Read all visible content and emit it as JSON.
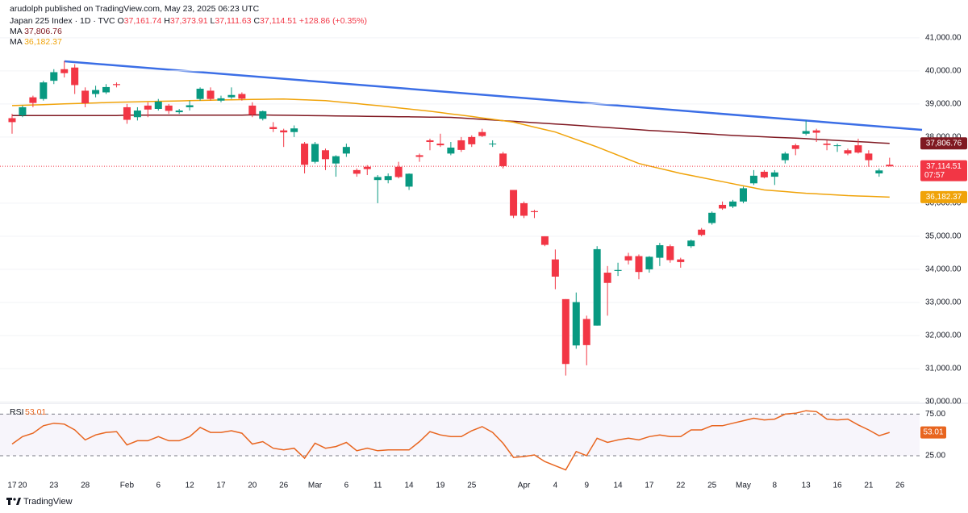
{
  "chart_data": {
    "type": "candlestick",
    "published": "arudolph published on TradingView.com, May 23, 2025 06:23 UTC",
    "title": "Japan 225 Index · 1D · TVC",
    "header": [
      {
        "prefix": "O",
        "value": 37161.74,
        "label": "37,161.74"
      },
      {
        "prefix": "H",
        "value": 37373.91,
        "label": "37,373.91"
      },
      {
        "prefix": "L",
        "value": 37111.63,
        "label": "37,111.63"
      },
      {
        "prefix": "C",
        "value": 37114.51,
        "label": "37,114.51"
      }
    ],
    "change": {
      "value": 128.86,
      "label": "+128.86"
    },
    "change_pct": {
      "value": 0.35,
      "label": "(+0.35%)"
    },
    "up_color": "#089981",
    "down_color": "#f23645",
    "categories": [
      "17",
      "20",
      null,
      null,
      "23",
      null,
      null,
      "28",
      null,
      null,
      null,
      "Feb",
      null,
      null,
      "6",
      null,
      null,
      "12",
      null,
      null,
      "17",
      null,
      null,
      "20",
      null,
      null,
      "26",
      null,
      null,
      "Mar",
      null,
      null,
      "6",
      null,
      null,
      "11",
      null,
      null,
      "14",
      null,
      null,
      "19",
      null,
      null,
      "25",
      null,
      null,
      null,
      null,
      "Apr",
      null,
      null,
      "4",
      null,
      null,
      "9",
      null,
      null,
      "14",
      null,
      null,
      "17",
      null,
      null,
      "22",
      null,
      null,
      "25",
      null,
      null,
      "May",
      null,
      null,
      "8",
      null,
      null,
      "13",
      null,
      null,
      "16",
      null,
      null,
      "21",
      null,
      null,
      "26"
    ],
    "open": [
      38570,
      38650,
      39200,
      39150,
      39700,
      40050,
      40100,
      39400,
      39300,
      39350,
      39600,
      38900,
      38600,
      38950,
      38850,
      38950,
      38750,
      38900,
      39150,
      39400,
      39100,
      39200,
      39300,
      38950,
      38550,
      38300,
      38200,
      38150,
      37800,
      37250,
      37600,
      37200,
      37500,
      37000,
      37100,
      36700,
      36700,
      37100,
      36500,
      37450,
      37900,
      37800,
      37500,
      37900,
      38000,
      38150,
      37780,
      37500,
      36400,
      36000,
      35760,
      35000,
      34300,
      33100,
      31700,
      32500,
      32300,
      33900,
      33950,
      34400,
      34400,
      34000,
      34350,
      34700,
      34300,
      34700,
      35200,
      35400,
      35950,
      35900,
      36050,
      36600,
      36950,
      36800,
      37300,
      37750,
      38100,
      38200,
      37800,
      37740,
      37600,
      37750,
      37500,
      36900,
      37161.74,
      null
    ],
    "high": [
      38700,
      38950,
      39250,
      39700,
      40050,
      40300,
      40200,
      39500,
      39550,
      39600,
      39650,
      39000,
      38900,
      39050,
      39150,
      39000,
      38850,
      39100,
      39500,
      39500,
      39250,
      39500,
      39350,
      39050,
      38800,
      38450,
      38250,
      38350,
      37850,
      37850,
      37650,
      37450,
      37800,
      37050,
      37150,
      36850,
      36900,
      37250,
      36900,
      37500,
      37950,
      38100,
      37850,
      38000,
      38050,
      38250,
      37900,
      37550,
      36400,
      36050,
      35800,
      35000,
      34600,
      33100,
      33300,
      32600,
      34700,
      34100,
      34200,
      34500,
      34450,
      34400,
      34800,
      34750,
      34350,
      34900,
      35250,
      35750,
      36050,
      36100,
      36500,
      37000,
      37000,
      37000,
      37550,
      37800,
      38500,
      38250,
      37900,
      37800,
      37650,
      37950,
      37600,
      37050,
      37373.91,
      null
    ],
    "low": [
      38100,
      38600,
      38900,
      39100,
      39600,
      39800,
      39300,
      38900,
      39200,
      39300,
      39500,
      38400,
      38500,
      38600,
      38800,
      38700,
      38700,
      38800,
      39100,
      39100,
      39050,
      39150,
      39100,
      38600,
      38500,
      38150,
      37700,
      38000,
      36900,
      37200,
      37000,
      36800,
      37400,
      36800,
      36850,
      36000,
      36600,
      36750,
      36400,
      37250,
      37600,
      37700,
      37450,
      37550,
      37700,
      38000,
      37700,
      37050,
      35550,
      35550,
      35550,
      34700,
      33400,
      30790,
      31600,
      31100,
      32300,
      32600,
      33800,
      34150,
      33700,
      33900,
      34100,
      34200,
      34050,
      34650,
      35000,
      35350,
      35800,
      35850,
      36000,
      36550,
      36750,
      36550,
      37200,
      37450,
      38050,
      37850,
      37600,
      37550,
      37450,
      37500,
      37100,
      36800,
      37111.63,
      null
    ],
    "close": [
      38450,
      38900,
      39030,
      39650,
      39960,
      39930,
      39570,
      39020,
      39420,
      39510,
      39570,
      38520,
      38800,
      38830,
      39070,
      38790,
      38800,
      38960,
      39460,
      39150,
      39170,
      39270,
      39160,
      38680,
      38780,
      38240,
      38140,
      38260,
      37160,
      37790,
      37330,
      37420,
      37700,
      36890,
      37030,
      36790,
      36820,
      36790,
      36890,
      37400,
      37850,
      37750,
      37680,
      37610,
      37780,
      38030,
      37800,
      37120,
      35620,
      35620,
      35730,
      34740,
      33780,
      31140,
      33010,
      31710,
      34610,
      33590,
      33980,
      34270,
      33920,
      34380,
      34730,
      34280,
      34220,
      34870,
      35040,
      35710,
      35840,
      36050,
      36450,
      36830,
      36780,
      36930,
      37500,
      37640,
      38180,
      38130,
      37760,
      37750,
      37500,
      37530,
      37300,
      36990,
      37114.51,
      null
    ],
    "last_label": "37,114.51",
    "countdown": "07:57",
    "ma": [
      {
        "name": "MA",
        "color": "#801922",
        "last_label": "37,806.76",
        "values": [
          38650,
          38650,
          38650,
          38650,
          38650,
          38650,
          38650,
          38650,
          38650,
          38650,
          38650,
          38660,
          38660,
          38660,
          38660,
          38660,
          38660,
          38660,
          38660,
          38660,
          38660,
          38660,
          38660,
          38670,
          38666,
          38662,
          38658,
          38654,
          38650,
          38646,
          38642,
          38638,
          38634,
          38630,
          38626,
          38622,
          38618,
          38614,
          38610,
          38606,
          38602,
          38598,
          38594,
          38574,
          38554,
          38534,
          38514,
          38494,
          38474,
          38454,
          38434,
          38414,
          38394,
          38374,
          38352,
          38330,
          38308,
          38286,
          38264,
          38242,
          38220,
          38200,
          38181,
          38162,
          38143,
          38124,
          38105,
          38086,
          38067,
          38048,
          38034,
          38020,
          38006,
          37992,
          37978,
          37964,
          37950,
          37932,
          37914,
          37896,
          37878,
          37860,
          37842,
          37824,
          37806.76,
          null
        ]
      },
      {
        "name": "MA",
        "color": "#f0a30a",
        "last_label": "36,182.37",
        "values": [
          38950,
          38960,
          38970,
          38980,
          38990,
          39000,
          39010,
          39020,
          39030,
          39040,
          39050,
          39057,
          39064,
          39071,
          39078,
          39085,
          39092,
          39099,
          39106,
          39113,
          39120,
          39125,
          39130,
          39135,
          39140,
          39145,
          39150,
          39138,
          39125,
          39113,
          39100,
          39070,
          39040,
          39010,
          38980,
          38950,
          38916,
          38882,
          38848,
          38814,
          38780,
          38740,
          38700,
          38660,
          38620,
          38578,
          38535,
          38493,
          38450,
          38375,
          38300,
          38225,
          38150,
          38038,
          37925,
          37813,
          37700,
          37575,
          37450,
          37325,
          37200,
          37125,
          37050,
          36975,
          36900,
          36838,
          36775,
          36713,
          36650,
          36588,
          36525,
          36463,
          36400,
          36375,
          36350,
          36325,
          36300,
          36283,
          36265,
          36248,
          36230,
          36218,
          36206,
          36194,
          36182.37,
          null
        ]
      }
    ],
    "ylim": [
      30000,
      41800
    ],
    "yticks": [
      {
        "value": 30000,
        "label": "30,000.00"
      },
      {
        "value": 31000,
        "label": "31,000.00"
      },
      {
        "value": 32000,
        "label": "32,000.00"
      },
      {
        "value": 33000,
        "label": "33,000.00"
      },
      {
        "value": 34000,
        "label": "34,000.00"
      },
      {
        "value": 35000,
        "label": "35,000.00"
      },
      {
        "value": 36000,
        "label": "36,000.00"
      },
      {
        "value": 38000,
        "label": "38,000.00"
      },
      {
        "value": 39000,
        "label": "39,000.00"
      },
      {
        "value": 40000,
        "label": "40,000.00"
      },
      {
        "value": 41000,
        "label": "41,000.00"
      }
    ],
    "grid": true,
    "rsi": {
      "name": "RSI",
      "label": "53.01",
      "color": "#e8651f",
      "ylim": [
        -5,
        86
      ],
      "levels": [
        {
          "value": 75,
          "label": "75.00"
        },
        {
          "value": 25,
          "label": "25.00"
        }
      ],
      "values": [
        39,
        48,
        52,
        61,
        64,
        63,
        56,
        44,
        50,
        53,
        54,
        38,
        43,
        43,
        48,
        43,
        43,
        48,
        59,
        53,
        53,
        55,
        52,
        39,
        42,
        34,
        32,
        34,
        22,
        40,
        34,
        36,
        41,
        31,
        34,
        31,
        32,
        32,
        32,
        42,
        54,
        50,
        48,
        48,
        55,
        60,
        53,
        40,
        23,
        24,
        26,
        18,
        13,
        8,
        30,
        25,
        46,
        41,
        44,
        46,
        44,
        48,
        50,
        48,
        48,
        56,
        56,
        61,
        61,
        64,
        67,
        70,
        68,
        69,
        75,
        76,
        79,
        78,
        69,
        68,
        69,
        62,
        56,
        49,
        53.01,
        null
      ]
    },
    "footer": "TradingView"
  }
}
